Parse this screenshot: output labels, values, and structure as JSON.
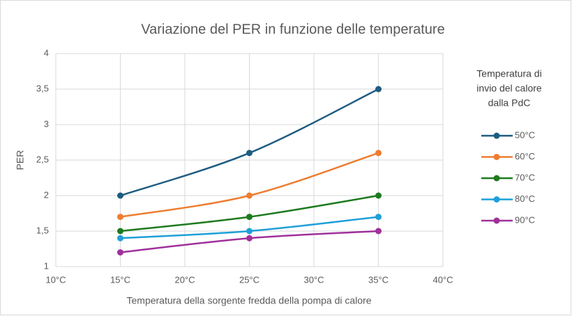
{
  "chart_data": {
    "type": "line",
    "title": "Variazione del PER in funzione delle temperature",
    "x_label": "Temperatura della sorgente fredda della pompa di calore",
    "y_label": "PER",
    "legend_title": [
      "Temperatura di",
      "invio del calore",
      "dalla PdC"
    ],
    "legend_position": "right",
    "grid": true,
    "smooth": true,
    "x": [
      15,
      25,
      35
    ],
    "xlim": [
      10,
      40
    ],
    "xticks": [
      {
        "value": 10,
        "label": "10°C"
      },
      {
        "value": 15,
        "label": "15°C"
      },
      {
        "value": 20,
        "label": "20°C"
      },
      {
        "value": 25,
        "label": "25°C"
      },
      {
        "value": 30,
        "label": "30°C"
      },
      {
        "value": 35,
        "label": "35°C"
      },
      {
        "value": 40,
        "label": "40°C"
      }
    ],
    "ylim": [
      1,
      4
    ],
    "yticks": [
      1,
      {
        "value": 1.5,
        "label": "1,5"
      },
      2,
      {
        "value": 2.5,
        "label": "2,5"
      },
      3,
      {
        "value": 3.5,
        "label": "3,5"
      },
      4
    ],
    "series": [
      {
        "name": "50°C",
        "color": "#1f5c80",
        "values": [
          2,
          2.6,
          3.5
        ]
      },
      {
        "name": "60°C",
        "color": "#ee7d31",
        "values": [
          1.7,
          2.0,
          2.6
        ]
      },
      {
        "name": "70°C",
        "color": "#1e7a1e",
        "values": [
          1.5,
          1.7,
          2.0
        ]
      },
      {
        "name": "80°C",
        "color": "#1ea0d8",
        "values": [
          1.4,
          1.5,
          1.7
        ]
      },
      {
        "name": "90°C",
        "color": "#a0309a",
        "values": [
          1.2,
          1.4,
          1.5
        ]
      }
    ]
  }
}
